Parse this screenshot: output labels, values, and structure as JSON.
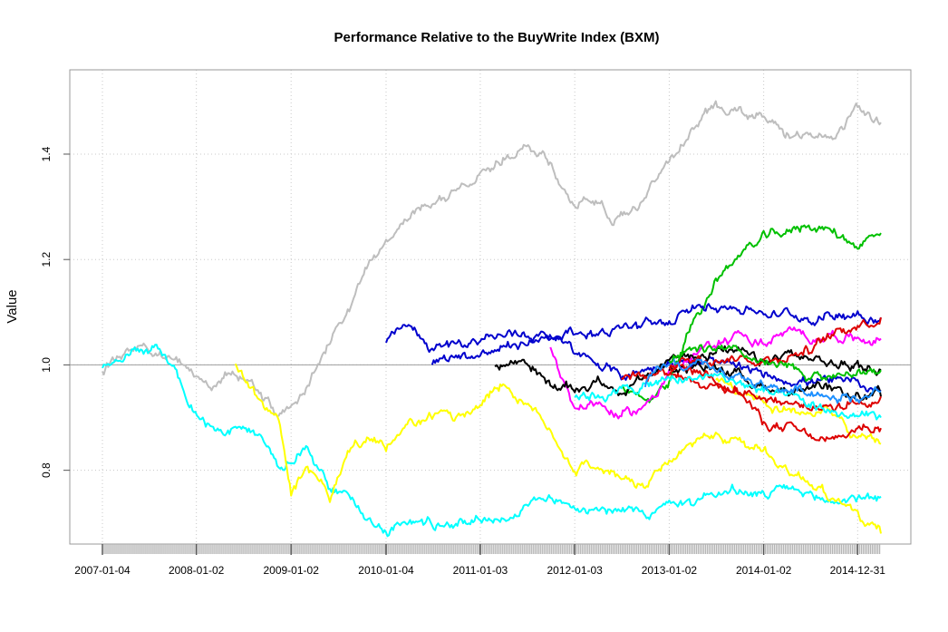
{
  "chart_data": {
    "type": "line",
    "title": "Performance Relative to the BuyWrite Index (BXM)",
    "xlabel": "",
    "ylabel": "Value",
    "ylim": [
      0.66,
      1.56
    ],
    "yticks": [
      0.8,
      1.0,
      1.2,
      1.4
    ],
    "ytick_labels": [
      "0.8",
      "1.0",
      "1.2",
      "1.4"
    ],
    "xlim": [
      "2007-01-04",
      "2015-03-31"
    ],
    "xticks": [
      "2007-01-04",
      "2008-01-02",
      "2009-01-02",
      "2010-01-04",
      "2011-01-03",
      "2012-01-03",
      "2013-01-02",
      "2014-01-02",
      "2014-12-31"
    ],
    "grid": true,
    "grid_style": "dotted",
    "reference_line": 1.0,
    "series": [
      {
        "color": "#BEBEBE",
        "points": [
          [
            "2007-01-04",
            0.99
          ],
          [
            "2007-03-01",
            1.02
          ],
          [
            "2007-06-01",
            1.04
          ],
          [
            "2007-09-01",
            1.01
          ],
          [
            "2007-12-01",
            1.0
          ],
          [
            "2008-03-01",
            0.97
          ],
          [
            "2008-06-01",
            0.99
          ],
          [
            "2008-09-01",
            0.95
          ],
          [
            "2008-11-15",
            0.9
          ],
          [
            "2009-01-02",
            0.92
          ],
          [
            "2009-03-01",
            0.96
          ],
          [
            "2009-06-01",
            1.05
          ],
          [
            "2009-09-01",
            1.12
          ],
          [
            "2009-11-01",
            1.2
          ],
          [
            "2010-01-04",
            1.22
          ],
          [
            "2010-04-01",
            1.28
          ],
          [
            "2010-07-01",
            1.31
          ],
          [
            "2010-10-01",
            1.33
          ],
          [
            "2011-01-03",
            1.37
          ],
          [
            "2011-04-01",
            1.39
          ],
          [
            "2011-07-01",
            1.41
          ],
          [
            "2011-09-01",
            1.39
          ],
          [
            "2011-12-01",
            1.33
          ],
          [
            "2012-01-03",
            1.3
          ],
          [
            "2012-03-01",
            1.32
          ],
          [
            "2012-06-01",
            1.28
          ],
          [
            "2012-09-01",
            1.3
          ],
          [
            "2013-01-02",
            1.39
          ],
          [
            "2013-04-01",
            1.45
          ],
          [
            "2013-07-01",
            1.49
          ],
          [
            "2013-09-01",
            1.49
          ],
          [
            "2014-01-02",
            1.47
          ],
          [
            "2014-04-01",
            1.44
          ],
          [
            "2014-07-01",
            1.43
          ],
          [
            "2014-10-01",
            1.44
          ],
          [
            "2014-12-31",
            1.49
          ],
          [
            "2015-03-31",
            1.46
          ]
        ]
      },
      {
        "color": "#00FFFF",
        "points": [
          [
            "2007-01-04",
            0.99
          ],
          [
            "2007-03-01",
            1.02
          ],
          [
            "2007-06-01",
            1.03
          ],
          [
            "2007-08-01",
            1.04
          ],
          [
            "2007-10-01",
            1.0
          ],
          [
            "2007-12-01",
            0.93
          ],
          [
            "2008-03-01",
            0.88
          ],
          [
            "2008-06-01",
            0.87
          ],
          [
            "2008-09-01",
            0.86
          ],
          [
            "2008-11-15",
            0.8
          ],
          [
            "2009-01-02",
            0.82
          ],
          [
            "2009-03-01",
            0.85
          ],
          [
            "2009-06-01",
            0.76
          ],
          [
            "2009-09-01",
            0.74
          ],
          [
            "2009-12-01",
            0.7
          ],
          [
            "2010-01-04",
            0.69
          ],
          [
            "2010-04-01",
            0.7
          ],
          [
            "2010-07-01",
            0.7
          ],
          [
            "2010-10-01",
            0.7
          ],
          [
            "2011-01-03",
            0.71
          ],
          [
            "2011-04-01",
            0.71
          ],
          [
            "2011-07-01",
            0.73
          ],
          [
            "2011-10-01",
            0.75
          ],
          [
            "2012-01-03",
            0.73
          ],
          [
            "2012-04-01",
            0.74
          ],
          [
            "2012-07-01",
            0.72
          ],
          [
            "2012-10-01",
            0.72
          ],
          [
            "2013-01-02",
            0.73
          ],
          [
            "2013-04-01",
            0.74
          ],
          [
            "2013-07-01",
            0.76
          ],
          [
            "2013-10-01",
            0.76
          ],
          [
            "2014-01-02",
            0.75
          ],
          [
            "2014-04-01",
            0.76
          ],
          [
            "2014-07-01",
            0.75
          ],
          [
            "2014-10-01",
            0.74
          ],
          [
            "2014-12-31",
            0.75
          ],
          [
            "2015-03-31",
            0.75
          ]
        ]
      },
      {
        "color": "#FFFF00",
        "points": [
          [
            "2008-06-01",
            1.0
          ],
          [
            "2008-09-01",
            0.93
          ],
          [
            "2008-11-15",
            0.9
          ],
          [
            "2009-01-02",
            0.76
          ],
          [
            "2009-03-01",
            0.8
          ],
          [
            "2009-06-01",
            0.75
          ],
          [
            "2009-09-01",
            0.85
          ],
          [
            "2009-12-01",
            0.86
          ],
          [
            "2010-01-04",
            0.84
          ],
          [
            "2010-04-01",
            0.88
          ],
          [
            "2010-07-01",
            0.9
          ],
          [
            "2010-10-01",
            0.9
          ],
          [
            "2011-01-03",
            0.93
          ],
          [
            "2011-04-01",
            0.97
          ],
          [
            "2011-07-01",
            0.92
          ],
          [
            "2011-10-01",
            0.88
          ],
          [
            "2012-01-03",
            0.8
          ],
          [
            "2012-04-01",
            0.81
          ],
          [
            "2012-07-01",
            0.78
          ],
          [
            "2012-10-01",
            0.77
          ],
          [
            "2013-01-02",
            0.81
          ],
          [
            "2013-04-01",
            0.85
          ],
          [
            "2013-07-01",
            0.87
          ],
          [
            "2013-10-01",
            0.85
          ],
          [
            "2014-01-02",
            0.84
          ],
          [
            "2014-04-01",
            0.8
          ],
          [
            "2014-07-01",
            0.78
          ],
          [
            "2014-10-01",
            0.75
          ],
          [
            "2014-12-31",
            0.71
          ],
          [
            "2015-03-31",
            0.68
          ]
        ]
      },
      {
        "color": "#FFFF00",
        "points": [
          [
            "2013-07-01",
            0.97
          ],
          [
            "2013-10-01",
            0.94
          ],
          [
            "2014-01-02",
            0.93
          ],
          [
            "2014-04-01",
            0.92
          ],
          [
            "2014-07-01",
            0.91
          ],
          [
            "2014-10-01",
            0.9
          ],
          [
            "2014-12-31",
            0.86
          ],
          [
            "2015-03-31",
            0.85
          ]
        ]
      },
      {
        "color": "#00C000",
        "points": [
          [
            "2012-07-01",
            0.96
          ],
          [
            "2012-10-01",
            0.93
          ],
          [
            "2013-01-02",
            0.97
          ],
          [
            "2013-04-01",
            1.08
          ],
          [
            "2013-07-01",
            1.16
          ],
          [
            "2013-10-01",
            1.21
          ],
          [
            "2014-01-02",
            1.24
          ],
          [
            "2014-04-01",
            1.25
          ],
          [
            "2014-07-01",
            1.27
          ],
          [
            "2014-10-01",
            1.25
          ],
          [
            "2014-12-31",
            1.23
          ],
          [
            "2015-03-31",
            1.25
          ]
        ]
      },
      {
        "color": "#0000CD",
        "points": [
          [
            "2010-01-04",
            1.04
          ],
          [
            "2010-04-01",
            1.07
          ],
          [
            "2010-07-01",
            1.03
          ],
          [
            "2010-10-01",
            1.04
          ],
          [
            "2011-01-03",
            1.05
          ],
          [
            "2011-07-01",
            1.06
          ],
          [
            "2012-01-03",
            1.06
          ],
          [
            "2012-07-01",
            1.07
          ],
          [
            "2013-01-02",
            1.08
          ],
          [
            "2013-07-01",
            1.12
          ],
          [
            "2014-01-02",
            1.1
          ],
          [
            "2014-07-01",
            1.09
          ],
          [
            "2014-12-31",
            1.1
          ],
          [
            "2015-03-31",
            1.09
          ]
        ]
      },
      {
        "color": "#0000CD",
        "points": [
          [
            "2010-07-01",
            1.0
          ],
          [
            "2010-10-01",
            1.02
          ],
          [
            "2011-01-03",
            1.02
          ],
          [
            "2011-07-01",
            1.04
          ],
          [
            "2011-10-01",
            1.06
          ],
          [
            "2012-01-03",
            1.02
          ],
          [
            "2012-04-01",
            1.0
          ],
          [
            "2012-07-01",
            0.98
          ],
          [
            "2012-10-01",
            0.99
          ],
          [
            "2013-01-02",
            1.01
          ],
          [
            "2013-07-01",
            1.0
          ],
          [
            "2014-01-02",
            0.98
          ],
          [
            "2014-07-01",
            0.97
          ],
          [
            "2014-12-31",
            0.96
          ],
          [
            "2015-03-31",
            0.95
          ]
        ]
      },
      {
        "color": "#FF00FF",
        "points": [
          [
            "2011-10-01",
            1.04
          ],
          [
            "2012-01-03",
            0.92
          ],
          [
            "2012-04-01",
            0.93
          ],
          [
            "2012-07-01",
            0.9
          ],
          [
            "2012-10-01",
            0.92
          ],
          [
            "2013-01-02",
            0.99
          ],
          [
            "2013-04-01",
            1.01
          ],
          [
            "2013-07-01",
            1.04
          ],
          [
            "2013-10-01",
            1.06
          ],
          [
            "2014-01-02",
            1.04
          ],
          [
            "2014-04-01",
            1.06
          ],
          [
            "2014-07-01",
            1.05
          ],
          [
            "2014-10-01",
            1.06
          ],
          [
            "2014-12-31",
            1.05
          ],
          [
            "2015-03-31",
            1.05
          ]
        ]
      },
      {
        "color": "#000000",
        "points": [
          [
            "2011-03-01",
            1.0
          ],
          [
            "2011-07-01",
            1.01
          ],
          [
            "2011-10-01",
            0.96
          ],
          [
            "2012-01-03",
            0.95
          ],
          [
            "2012-04-01",
            0.97
          ],
          [
            "2012-07-01",
            0.95
          ],
          [
            "2012-10-01",
            0.97
          ],
          [
            "2013-01-02",
            1.01
          ],
          [
            "2013-04-01",
            1.02
          ],
          [
            "2013-07-01",
            1.03
          ],
          [
            "2013-10-01",
            1.02
          ],
          [
            "2014-01-02",
            1.0
          ],
          [
            "2014-04-01",
            1.02
          ],
          [
            "2014-07-01",
            1.01
          ],
          [
            "2014-10-01",
            1.0
          ],
          [
            "2014-12-31",
            1.0
          ],
          [
            "2015-03-31",
            0.99
          ]
        ]
      },
      {
        "color": "#000000",
        "points": [
          [
            "2013-01-02",
            0.99
          ],
          [
            "2013-07-01",
            1.0
          ],
          [
            "2014-01-02",
            0.96
          ],
          [
            "2014-07-01",
            0.95
          ],
          [
            "2014-12-31",
            0.94
          ],
          [
            "2015-03-31",
            0.94
          ]
        ]
      },
      {
        "color": "#DD0000",
        "points": [
          [
            "2013-01-02",
            1.0
          ],
          [
            "2013-07-01",
            0.98
          ],
          [
            "2013-10-01",
            0.95
          ],
          [
            "2014-01-02",
            0.89
          ],
          [
            "2014-04-01",
            0.88
          ],
          [
            "2014-07-01",
            0.86
          ],
          [
            "2014-10-01",
            0.85
          ],
          [
            "2014-12-31",
            0.88
          ],
          [
            "2015-03-31",
            0.88
          ]
        ]
      },
      {
        "color": "#DD0000",
        "points": [
          [
            "2013-01-02",
            1.0
          ],
          [
            "2013-07-01",
            1.02
          ],
          [
            "2014-01-02",
            1.01
          ],
          [
            "2014-07-01",
            1.03
          ],
          [
            "2014-12-31",
            1.08
          ],
          [
            "2015-03-31",
            1.09
          ]
        ]
      },
      {
        "color": "#DD0000",
        "points": [
          [
            "2012-07-01",
            0.98
          ],
          [
            "2013-01-02",
            0.99
          ],
          [
            "2013-07-01",
            0.96
          ],
          [
            "2014-01-02",
            0.94
          ],
          [
            "2014-07-01",
            0.92
          ],
          [
            "2014-12-31",
            0.93
          ],
          [
            "2015-03-31",
            0.94
          ]
        ]
      },
      {
        "color": "#00FFFF",
        "points": [
          [
            "2012-01-03",
            0.94
          ],
          [
            "2012-07-01",
            0.95
          ],
          [
            "2013-01-02",
            0.97
          ],
          [
            "2013-07-01",
            0.98
          ],
          [
            "2014-01-02",
            0.95
          ],
          [
            "2014-07-01",
            0.92
          ],
          [
            "2014-12-31",
            0.9
          ],
          [
            "2015-03-31",
            0.9
          ]
        ]
      },
      {
        "color": "#1E90FF",
        "points": [
          [
            "2012-10-01",
            0.96
          ],
          [
            "2013-01-02",
            1.0
          ],
          [
            "2013-07-01",
            0.99
          ],
          [
            "2014-01-02",
            0.96
          ],
          [
            "2014-07-01",
            0.95
          ],
          [
            "2014-12-31",
            0.94
          ],
          [
            "2015-03-31",
            0.95
          ]
        ]
      },
      {
        "color": "#00C000",
        "points": [
          [
            "2013-01-02",
            1.01
          ],
          [
            "2013-07-01",
            1.03
          ],
          [
            "2014-01-02",
            1.0
          ],
          [
            "2014-07-01",
            0.98
          ],
          [
            "2014-12-31",
            0.98
          ],
          [
            "2015-03-31",
            0.99
          ]
        ]
      }
    ]
  }
}
